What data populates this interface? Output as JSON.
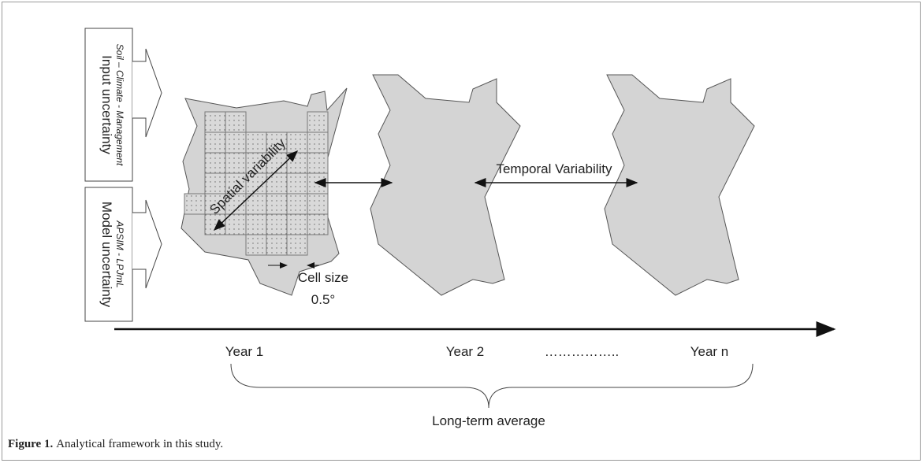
{
  "inputs": [
    {
      "title": "Input uncertainty",
      "subtitle": "Soil – Climate - Management"
    },
    {
      "title": "Model uncertainty",
      "subtitle": "APSIM - LPJmL"
    }
  ],
  "labels": {
    "spatial": "Spatial variability",
    "temporal": "Temporal Variability",
    "cell_size": "Cell size",
    "cell_value": "0.5°"
  },
  "timeline": {
    "years": [
      "Year 1",
      "Year 2",
      "Year n"
    ],
    "ellipsis": "……………..",
    "summary": "Long-term average"
  },
  "caption": {
    "label": "Figure 1.",
    "text": "Analytical framework in this study."
  }
}
